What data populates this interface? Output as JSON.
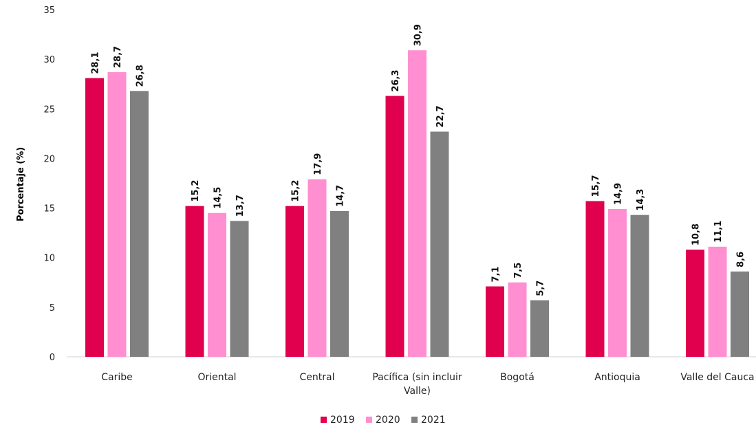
{
  "chart_data": {
    "type": "bar",
    "title": "",
    "xlabel": "",
    "ylabel": "Porcentaje (%)",
    "ylim": [
      0,
      35
    ],
    "yticks": [
      "0",
      "5",
      "10",
      "15",
      "20",
      "25",
      "30",
      "35"
    ],
    "categories": [
      [
        "Caribe"
      ],
      [
        "Oriental"
      ],
      [
        "Central"
      ],
      [
        "Pacífica (sin incluir",
        "Valle)"
      ],
      [
        "Bogotá"
      ],
      [
        "Antioquia"
      ],
      [
        "Valle del Cauca"
      ]
    ],
    "series": [
      {
        "name": "2019",
        "color": "#e0004d",
        "values": [
          28.1,
          15.2,
          15.2,
          26.3,
          7.1,
          15.7,
          10.8
        ],
        "labels": [
          "28,1",
          "15,2",
          "15,2",
          "26,3",
          "7,1",
          "15,7",
          "10,8"
        ]
      },
      {
        "name": "2020",
        "color": "#ff8fd0",
        "values": [
          28.7,
          14.5,
          17.9,
          30.9,
          7.5,
          14.9,
          11.1
        ],
        "labels": [
          "28,7",
          "14,5",
          "17,9",
          "30,9",
          "7,5",
          "14,9",
          "11,1"
        ]
      },
      {
        "name": "2021",
        "color": "#808080",
        "values": [
          26.8,
          13.7,
          14.7,
          22.7,
          5.7,
          14.3,
          8.6
        ],
        "labels": [
          "26,8",
          "13,7",
          "14,7",
          "22,7",
          "5,7",
          "14,3",
          "8,6"
        ]
      }
    ],
    "grid": false,
    "legend": "bottom-center"
  }
}
